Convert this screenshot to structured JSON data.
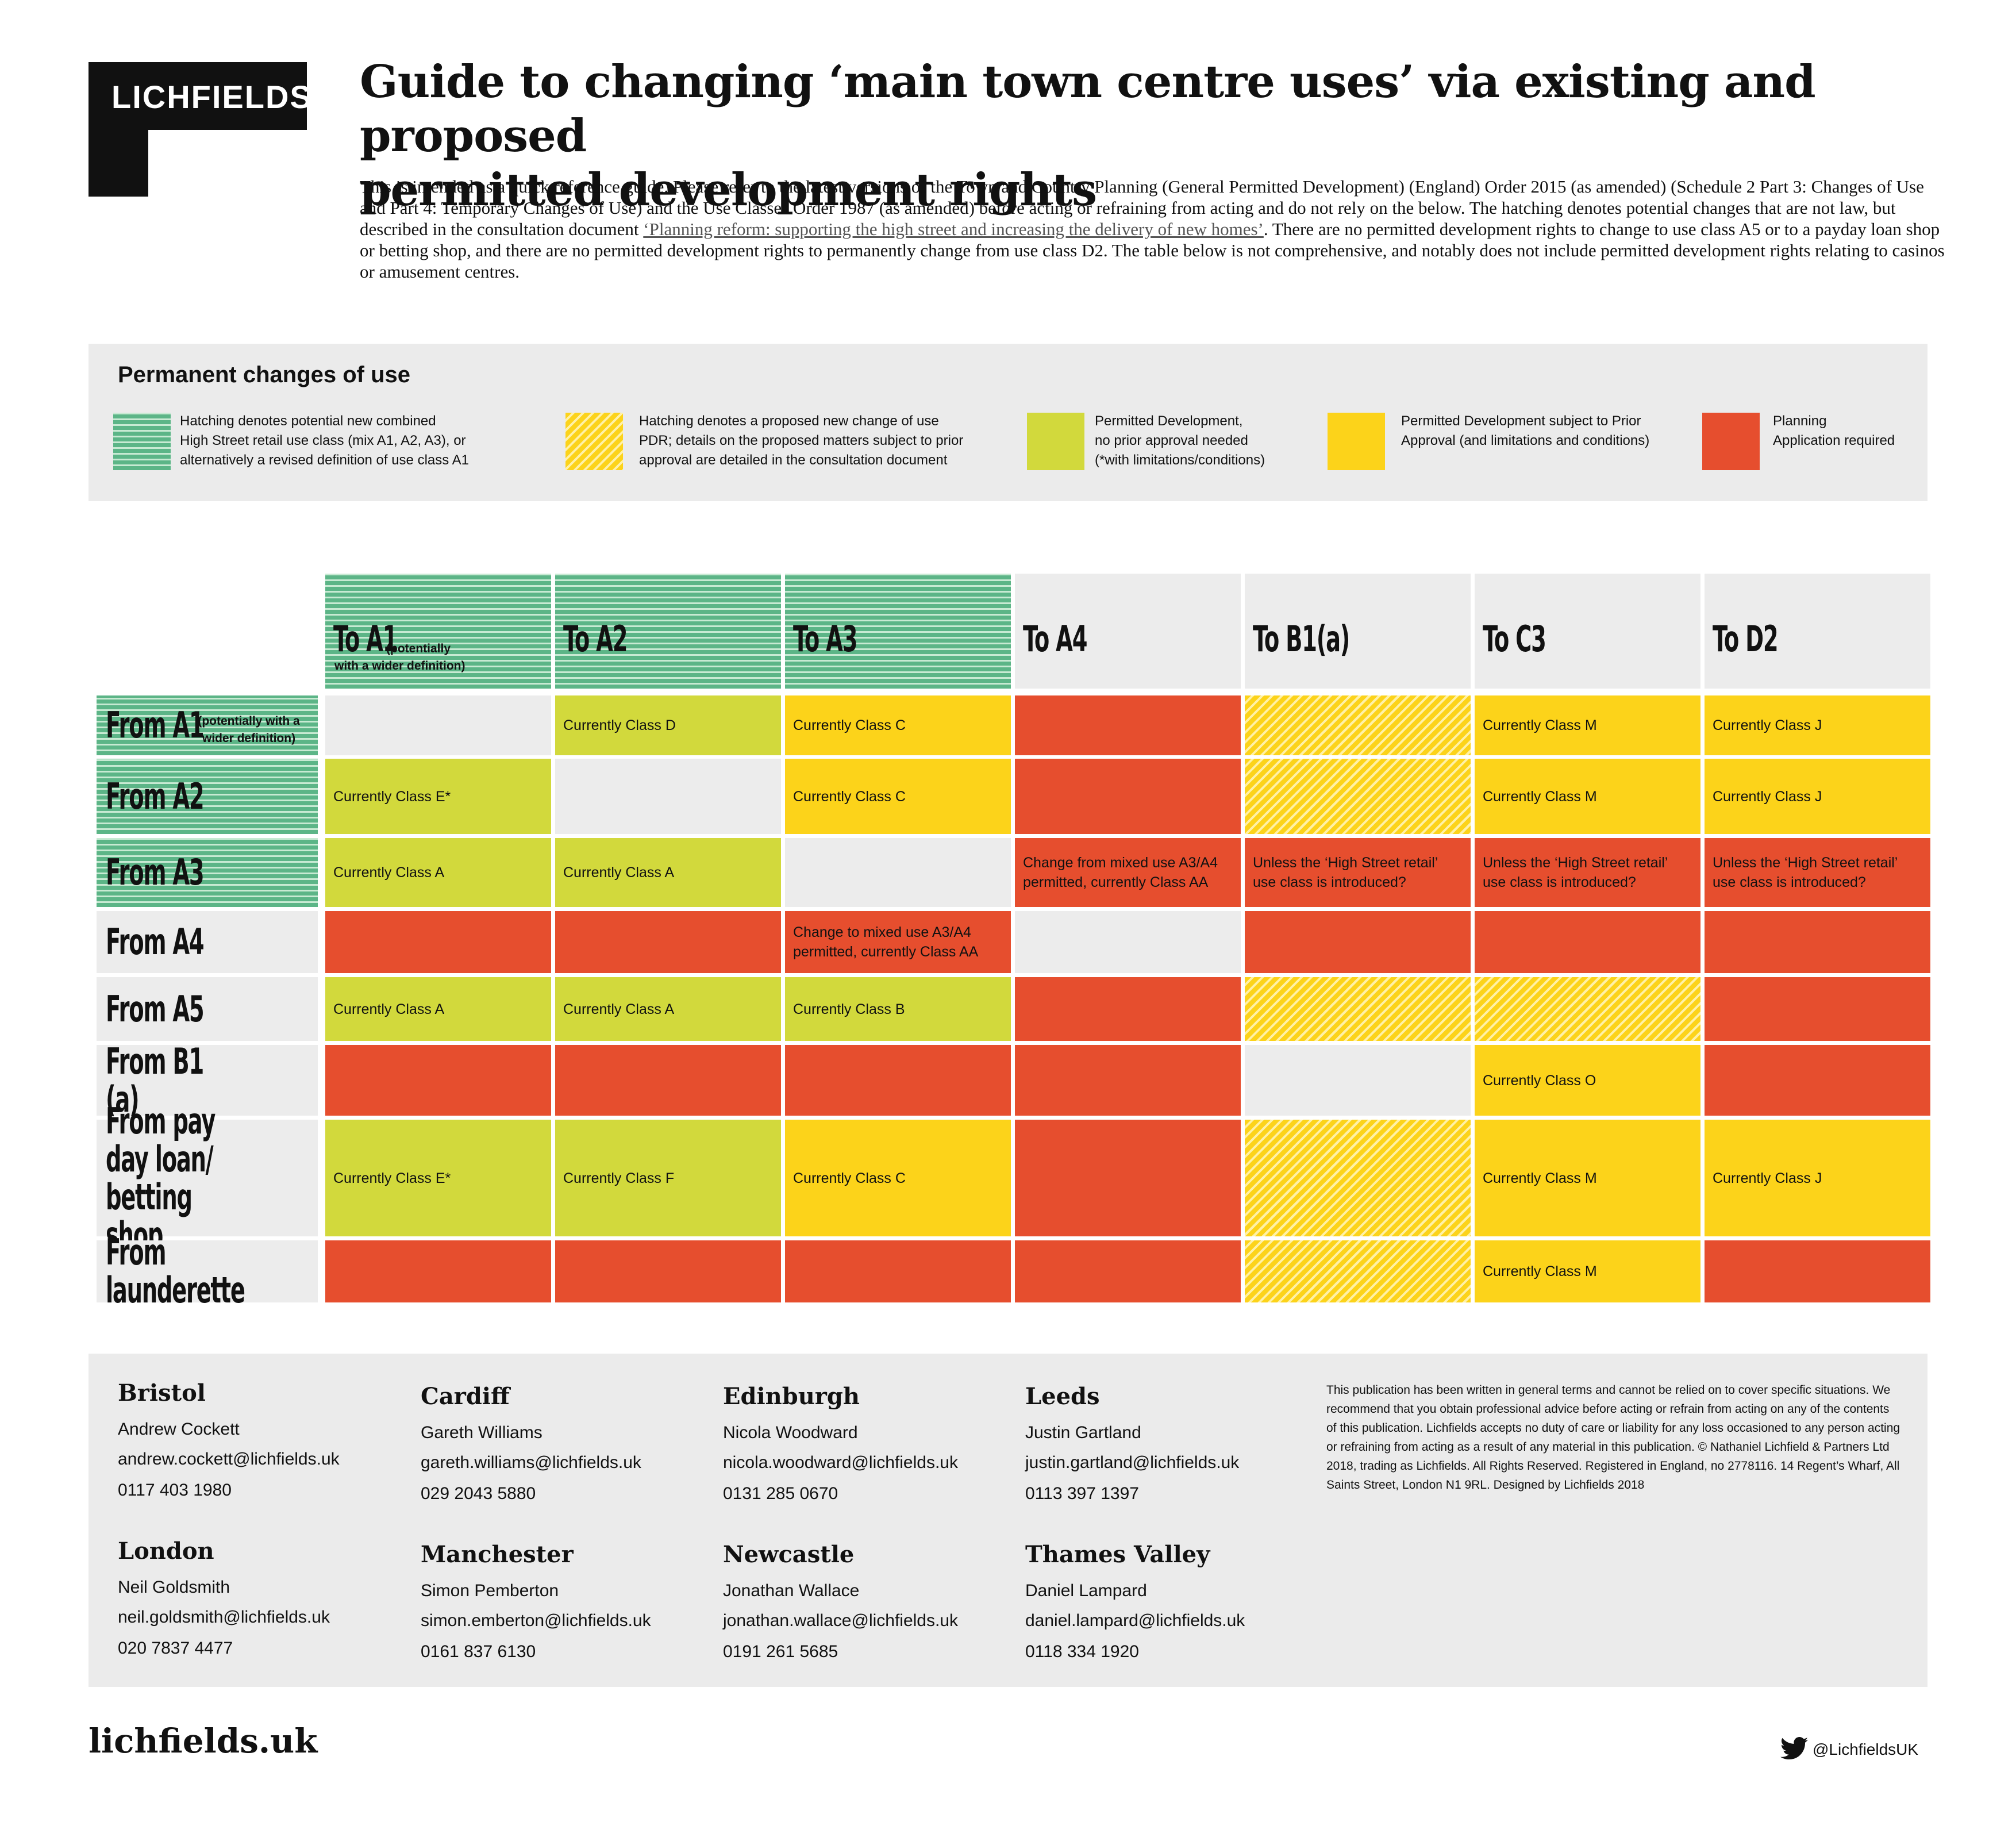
{
  "logo_text": "LICHFIELDS",
  "title_line1": "Guide to changing ‘main town centre uses’ via existing and proposed",
  "title_line2": "permitted development rights",
  "intro": {
    "before_link": "This is intended as a quick reference guide.  Please refer to the latest versions of the Town and Country Planning (General Permitted Development) (England) Order 2015 (as amended) (Schedule 2 Part 3: Changes of Use and Part 4: Temporary Changes of Use) and the Use Classes Order 1987 (as amended) before acting or refraining from acting and do not rely on the below.  The hatching denotes potential changes that are not law, but described in the consultation document ",
    "link": "‘Planning reform: supporting the high street and increasing the delivery of new homes’",
    "after_link": ". There are no permitted development rights to change to use class A5 or to a payday loan shop or betting shop, and there are no permitted development rights to permanently change from use class D2. The table below is not comprehensive, and notably does not include permitted development rights relating to casinos or amusement centres."
  },
  "legend": {
    "title": "Permanent changes of use",
    "items": [
      {
        "style": "hatch-green",
        "text": "Hatching denotes potential new combined\nHigh Street retail use class (mix A1, A2, A3), or\nalternatively a revised definition of use class A1"
      },
      {
        "style": "hatch-yellow",
        "text": "Hatching denotes a proposed new change of use\nPDR; details on the proposed matters subject to prior\napproval are detailed in the consultation document"
      },
      {
        "style": "green",
        "text": "Permitted Development,\nno prior approval needed\n(*with limitations/conditions)"
      },
      {
        "style": "yellow",
        "text": "Permitted Development subject to Prior\nApproval (and limitations and conditions)"
      },
      {
        "style": "red",
        "text": "Planning\nApplication required"
      }
    ]
  },
  "colors": {
    "green": "#d2d93c",
    "yellow": "#fcd31a",
    "red": "#e64e2e",
    "grey": "#ececec",
    "hatch_green": "#5cb587"
  },
  "columns": [
    {
      "label": "To A1",
      "sub": "(potentially\nwith a wider definition)",
      "style": "hatch-green"
    },
    {
      "label": "To A2",
      "sub": "",
      "style": "hatch-green"
    },
    {
      "label": "To A3",
      "sub": "",
      "style": "hatch-green"
    },
    {
      "label": "To A4",
      "sub": "",
      "style": "grey"
    },
    {
      "label": "To B1(a)",
      "sub": "",
      "style": "grey"
    },
    {
      "label": "To C3",
      "sub": "",
      "style": "grey"
    },
    {
      "label": "To D2",
      "sub": "",
      "style": "grey"
    }
  ],
  "rows": [
    {
      "label": "From A1",
      "sub": "(potentially with a\nwider definition)",
      "style": "hatch-green",
      "cells": [
        {
          "s": "grey",
          "t": ""
        },
        {
          "s": "green",
          "t": "Currently Class D"
        },
        {
          "s": "yellow",
          "t": "Currently Class C"
        },
        {
          "s": "red",
          "t": ""
        },
        {
          "s": "hatch-yellow",
          "t": ""
        },
        {
          "s": "yellow",
          "t": "Currently Class M"
        },
        {
          "s": "yellow",
          "t": "Currently Class J"
        }
      ]
    },
    {
      "label": "From A2",
      "sub": "",
      "style": "hatch-green",
      "cells": [
        {
          "s": "green",
          "t": "Currently Class E*"
        },
        {
          "s": "grey",
          "t": ""
        },
        {
          "s": "yellow",
          "t": "Currently Class C"
        },
        {
          "s": "red",
          "t": ""
        },
        {
          "s": "hatch-yellow",
          "t": ""
        },
        {
          "s": "yellow",
          "t": "Currently Class M"
        },
        {
          "s": "yellow",
          "t": "Currently Class J"
        }
      ]
    },
    {
      "label": "From A3",
      "sub": "",
      "style": "hatch-green",
      "cells": [
        {
          "s": "green",
          "t": "Currently Class A"
        },
        {
          "s": "green",
          "t": "Currently Class A"
        },
        {
          "s": "grey",
          "t": ""
        },
        {
          "s": "red",
          "t": "Change from mixed use A3/A4\npermitted, currently Class AA"
        },
        {
          "s": "red",
          "t": "Unless the ‘High Street retail’\nuse class is introduced?"
        },
        {
          "s": "red",
          "t": "Unless the ‘High Street retail’\nuse class is introduced?"
        },
        {
          "s": "red",
          "t": "Unless the ‘High Street retail’\nuse class is introduced?"
        }
      ]
    },
    {
      "label": "From A4",
      "sub": "",
      "style": "grey",
      "cells": [
        {
          "s": "red",
          "t": ""
        },
        {
          "s": "red",
          "t": ""
        },
        {
          "s": "red",
          "t": "Change to mixed use A3/A4\npermitted, currently Class AA"
        },
        {
          "s": "grey",
          "t": ""
        },
        {
          "s": "red",
          "t": ""
        },
        {
          "s": "red",
          "t": ""
        },
        {
          "s": "red",
          "t": ""
        }
      ]
    },
    {
      "label": "From A5",
      "sub": "",
      "style": "grey",
      "cells": [
        {
          "s": "green",
          "t": "Currently Class A"
        },
        {
          "s": "green",
          "t": "Currently Class A"
        },
        {
          "s": "green",
          "t": "Currently Class B"
        },
        {
          "s": "red",
          "t": ""
        },
        {
          "s": "hatch-yellow",
          "t": ""
        },
        {
          "s": "hatch-yellow",
          "t": ""
        },
        {
          "s": "red",
          "t": ""
        }
      ]
    },
    {
      "label": "From B1 (a)",
      "sub": "",
      "style": "grey",
      "cells": [
        {
          "s": "red",
          "t": ""
        },
        {
          "s": "red",
          "t": ""
        },
        {
          "s": "red",
          "t": ""
        },
        {
          "s": "red",
          "t": ""
        },
        {
          "s": "grey",
          "t": ""
        },
        {
          "s": "yellow",
          "t": "Currently Class O"
        },
        {
          "s": "red",
          "t": ""
        }
      ]
    },
    {
      "label": "From pay day loan/\nbetting shop",
      "sub": "",
      "style": "grey",
      "cells": [
        {
          "s": "green",
          "t": "Currently Class E*"
        },
        {
          "s": "green",
          "t": "Currently Class F"
        },
        {
          "s": "yellow",
          "t": "Currently Class C"
        },
        {
          "s": "red",
          "t": ""
        },
        {
          "s": "hatch-yellow",
          "t": ""
        },
        {
          "s": "yellow",
          "t": "Currently Class M"
        },
        {
          "s": "yellow",
          "t": "Currently Class J"
        }
      ]
    },
    {
      "label": "From launderette",
      "sub": "",
      "style": "grey",
      "cells": [
        {
          "s": "red",
          "t": ""
        },
        {
          "s": "red",
          "t": ""
        },
        {
          "s": "red",
          "t": ""
        },
        {
          "s": "red",
          "t": ""
        },
        {
          "s": "hatch-yellow",
          "t": ""
        },
        {
          "s": "yellow",
          "t": "Currently Class M"
        },
        {
          "s": "red",
          "t": ""
        }
      ]
    }
  ],
  "contacts": [
    {
      "office": "Bristol",
      "name": "Andrew Cockett",
      "email": "andrew.cockett@lichfields.uk",
      "phone": "0117 403 1980"
    },
    {
      "office": "Cardiff",
      "name": "Gareth Williams",
      "email": "gareth.williams@lichfields.uk",
      "phone": "029 2043 5880"
    },
    {
      "office": "Edinburgh",
      "name": "Nicola Woodward",
      "email": "nicola.woodward@lichfields.uk",
      "phone": "0131 285 0670"
    },
    {
      "office": "Leeds",
      "name": "Justin Gartland",
      "email": "justin.gartland@lichfields.uk",
      "phone": "0113 397 1397"
    },
    {
      "office": "London",
      "name": "Neil Goldsmith",
      "email": "neil.goldsmith@lichfields.uk",
      "phone": "020 7837 4477"
    },
    {
      "office": "Manchester",
      "name": "Simon Pemberton",
      "email": "simon.emberton@lichfields.uk",
      "phone": "0161 837 6130"
    },
    {
      "office": "Newcastle",
      "name": "Jonathan Wallace",
      "email": "jonathan.wallace@lichfields.uk",
      "phone": "0191 261 5685"
    },
    {
      "office": "Thames Valley",
      "name": "Daniel Lampard",
      "email": "daniel.lampard@lichfields.uk",
      "phone": "0118 334 1920"
    }
  ],
  "disclaimer": "This publication has been written in general terms and cannot be relied on to cover specific situations. We recommend that you obtain professional advice before acting or refrain from acting on any of the contents of this publication. Lichfields accepts no duty of care or liability for any loss occasioned to any person acting or refraining from acting as a result of any material in this publication. © Nathaniel Lichfield & Partners Ltd 2018, trading as Lichfields. All Rights Reserved. Registered in England, no 2778116. 14 Regent’s Wharf, All Saints Street, London N1 9RL. Designed by Lichfields 2018",
  "website": "lichfields.uk",
  "twitter": "@LichfieldsUK"
}
